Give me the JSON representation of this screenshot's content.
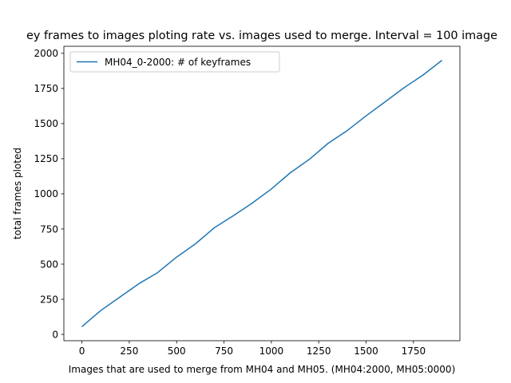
{
  "chart_data": {
    "type": "line",
    "title": "ey frames to images ploting rate vs. images used to merge. Interval = 100 image",
    "xlabel": "Images that are used to merge from MH04 and MH05. (MH04:2000, MH05:0000)",
    "ylabel": "total frames ploted",
    "xlim": [
      -95,
      1995
    ],
    "ylim": [
      -45,
      2050
    ],
    "xticks": [
      0,
      250,
      500,
      750,
      1000,
      1250,
      1500,
      1750
    ],
    "yticks": [
      0,
      250,
      500,
      750,
      1000,
      1250,
      1500,
      1750,
      2000
    ],
    "grid": false,
    "legend_position": "top-left",
    "series": [
      {
        "name": "MH04_0-2000: # of keyframes",
        "color": "#1f77b4",
        "x": [
          0,
          100,
          200,
          300,
          400,
          500,
          600,
          700,
          800,
          900,
          1000,
          1100,
          1200,
          1300,
          1400,
          1500,
          1600,
          1700,
          1800,
          1900
        ],
        "y": [
          55,
          170,
          265,
          360,
          440,
          550,
          645,
          760,
          845,
          935,
          1035,
          1150,
          1245,
          1360,
          1450,
          1555,
          1655,
          1755,
          1845,
          1950
        ]
      }
    ]
  }
}
